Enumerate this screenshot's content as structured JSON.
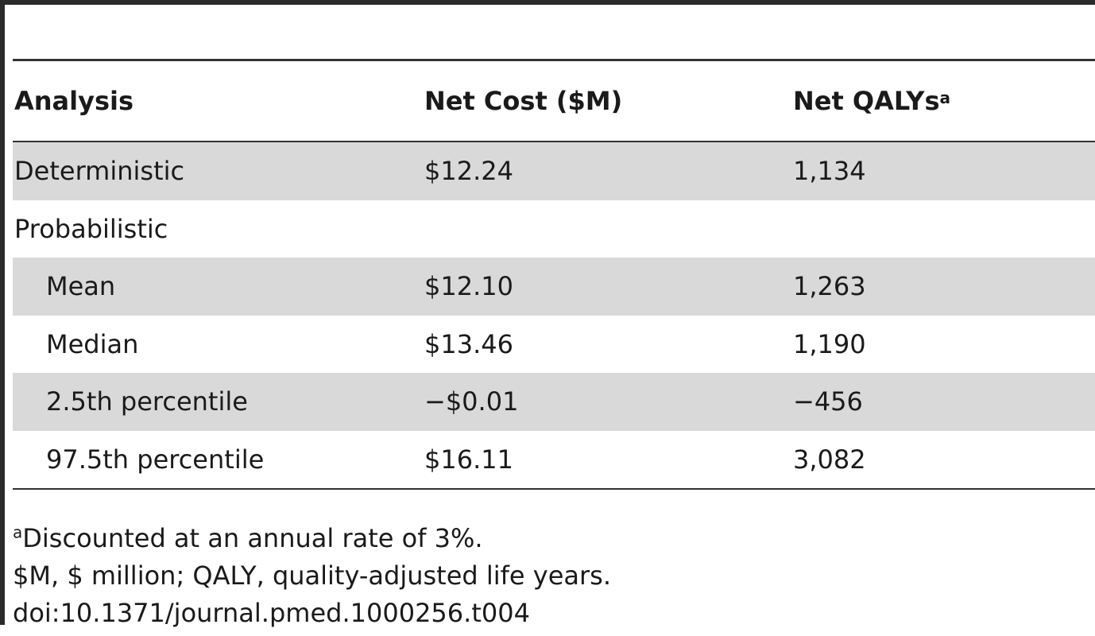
{
  "table": {
    "headers": {
      "analysis": "Analysis",
      "net_cost": "Net Cost ($M)",
      "net_qalys": "Net QALYs",
      "net_qalys_marker": "a"
    },
    "rows": [
      {
        "analysis": "Deterministic",
        "net_cost": "$12.24",
        "net_qalys": "1,134"
      },
      {
        "analysis": "Probabilistic",
        "net_cost": "",
        "net_qalys": ""
      },
      {
        "analysis": "Mean",
        "net_cost": "$12.10",
        "net_qalys": "1,263"
      },
      {
        "analysis": "Median",
        "net_cost": "$13.46",
        "net_qalys": "1,190"
      },
      {
        "analysis": "2.5th percentile",
        "net_cost": "−$0.01",
        "net_qalys": "−456"
      },
      {
        "analysis": "97.5th percentile",
        "net_cost": "$16.11",
        "net_qalys": "3,082"
      }
    ]
  },
  "footnotes": {
    "a_marker": "a",
    "a_text": "Discounted at an annual rate of 3%.",
    "abbreviations": "$M, $ million; QALY, quality-adjusted life years.",
    "doi": "doi:10.1371/journal.pmed.1000256.t004"
  }
}
